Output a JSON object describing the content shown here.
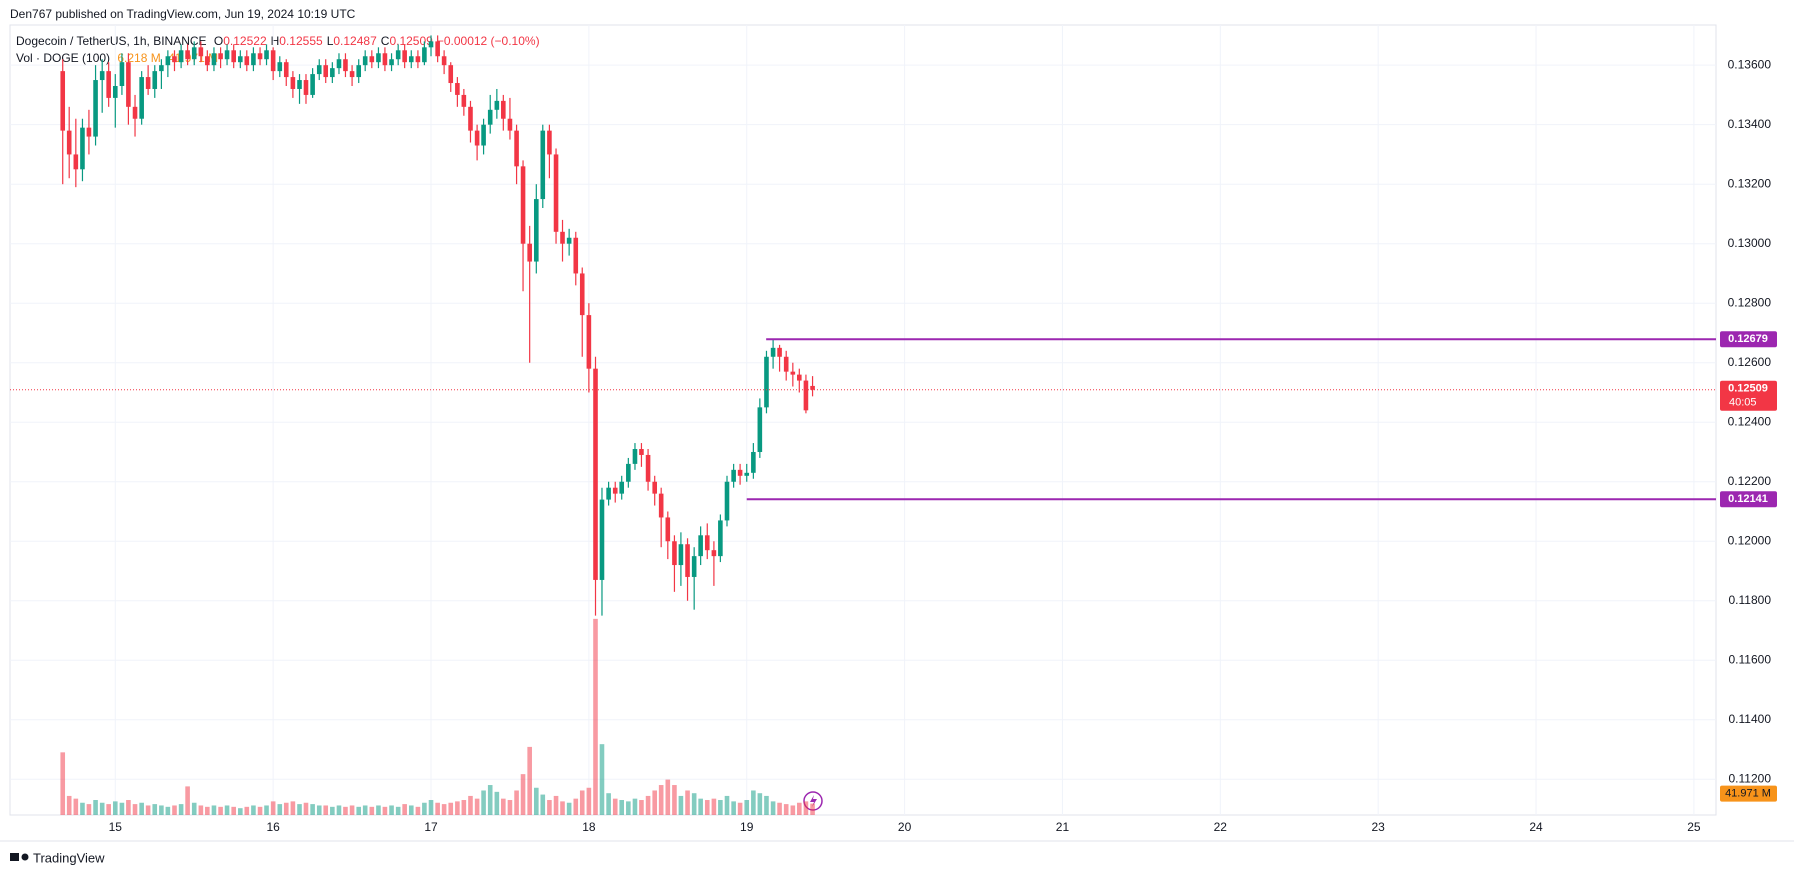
{
  "publisher": "Den767 published on TradingView.com, Jun 19, 2024 10:19 UTC",
  "footer": "TradingView",
  "chart_data": {
    "type": "candlestick",
    "title": "Dogecoin / TetherUS, 1h, BINANCE",
    "legend_ohlc": [
      {
        "label": "O",
        "value": 0.12522
      },
      {
        "label": "H",
        "value": 0.12555
      },
      {
        "label": "L",
        "value": 0.12487
      },
      {
        "label": "C",
        "value": 0.12509
      }
    ],
    "change": "−0.00012 (−0.10%)",
    "volume_title": "Vol · DOGE (100)",
    "volume_ma_label": "6.218 M",
    "volume_last_label": "41.971 M",
    "up_color": "#089981",
    "down_color": "#f23645",
    "level_color": "#9c27b0",
    "grid": true,
    "xlim": [
      14.333,
      25.14
    ],
    "xticks": [
      15,
      16,
      17,
      18,
      19,
      20,
      21,
      22,
      23,
      24,
      25
    ],
    "ylim": [
      0.1108,
      0.13735
    ],
    "yticks": [
      {
        "value": 0.112,
        "label": "0.11200"
      },
      {
        "value": 0.114,
        "label": "0.11400"
      },
      {
        "value": 0.116,
        "label": "0.11600"
      },
      {
        "value": 0.118,
        "label": "0.11800"
      },
      {
        "value": 0.12,
        "label": "0.12000"
      },
      {
        "value": 0.122,
        "label": "0.12200"
      },
      {
        "value": 0.124,
        "label": "0.12400"
      },
      {
        "value": 0.126,
        "label": "0.12600"
      },
      {
        "value": 0.128,
        "label": "0.12800"
      },
      {
        "value": 0.13,
        "label": "0.13000"
      },
      {
        "value": 0.132,
        "label": "0.13200"
      },
      {
        "value": 0.134,
        "label": "0.13400"
      },
      {
        "value": 0.136,
        "label": "0.13600"
      }
    ],
    "y2lim": [
      0,
      2900
    ],
    "last_price": 0.12509,
    "countdown": "40:05",
    "levels": [
      {
        "value": 0.12679,
        "x_start": 19.123
      },
      {
        "value": 0.12141,
        "x_start": 19.0
      }
    ],
    "x": [
      14.667,
      14.708,
      14.75,
      14.792,
      14.833,
      14.875,
      14.917,
      14.958,
      15,
      15.042,
      15.083,
      15.125,
      15.167,
      15.208,
      15.25,
      15.292,
      15.333,
      15.375,
      15.417,
      15.458,
      15.5,
      15.542,
      15.583,
      15.625,
      15.667,
      15.708,
      15.75,
      15.792,
      15.833,
      15.875,
      15.917,
      15.958,
      16,
      16.042,
      16.083,
      16.125,
      16.167,
      16.208,
      16.25,
      16.292,
      16.333,
      16.375,
      16.417,
      16.458,
      16.5,
      16.542,
      16.583,
      16.625,
      16.667,
      16.708,
      16.75,
      16.792,
      16.833,
      16.875,
      16.917,
      16.958,
      17,
      17.042,
      17.083,
      17.125,
      17.167,
      17.208,
      17.25,
      17.292,
      17.333,
      17.375,
      17.417,
      17.458,
      17.5,
      17.542,
      17.583,
      17.625,
      17.667,
      17.708,
      17.75,
      17.792,
      17.833,
      17.875,
      17.917,
      17.958,
      18,
      18.042,
      18.083,
      18.125,
      18.167,
      18.208,
      18.25,
      18.292,
      18.333,
      18.375,
      18.417,
      18.458,
      18.5,
      18.542,
      18.583,
      18.625,
      18.667,
      18.708,
      18.75,
      18.792,
      18.833,
      18.875,
      18.917,
      18.958,
      19,
      19.042,
      19.083,
      19.125,
      19.167,
      19.208,
      19.25,
      19.292,
      19.333,
      19.375,
      19.417
    ],
    "open": [
      0.1358,
      0.1338,
      0.133,
      0.1325,
      0.1339,
      0.1336,
      0.1355,
      0.1358,
      0.1349,
      0.1353,
      0.1361,
      0.1346,
      0.1342,
      0.1356,
      0.1352,
      0.1358,
      0.136,
      0.1363,
      0.1361,
      0.1365,
      0.1362,
      0.1366,
      0.1363,
      0.136,
      0.1364,
      0.1362,
      0.1365,
      0.1361,
      0.1363,
      0.136,
      0.1364,
      0.1362,
      0.1365,
      0.1358,
      0.1361,
      0.1356,
      0.1352,
      0.1355,
      0.135,
      0.1357,
      0.136,
      0.1356,
      0.1359,
      0.1362,
      0.1358,
      0.1356,
      0.136,
      0.1363,
      0.1361,
      0.1364,
      0.136,
      0.1362,
      0.1365,
      0.1361,
      0.1363,
      0.1361,
      0.1366,
      0.1368,
      0.1363,
      0.136,
      0.1354,
      0.135,
      0.1346,
      0.1338,
      0.1333,
      0.134,
      0.1345,
      0.1348,
      0.1342,
      0.1338,
      0.1326,
      0.13,
      0.1294,
      0.1315,
      0.1338,
      0.133,
      0.1304,
      0.13,
      0.1302,
      0.129,
      0.1276,
      0.1258,
      0.1187,
      0.1214,
      0.1218,
      0.1216,
      0.122,
      0.1226,
      0.1231,
      0.1229,
      0.122,
      0.1216,
      0.1208,
      0.12,
      0.1192,
      0.1199,
      0.1188,
      0.1195,
      0.1202,
      0.1197,
      0.1195,
      0.1207,
      0.122,
      0.1224,
      0.1222,
      0.1223,
      0.123,
      0.1245,
      0.1262,
      0.1265,
      0.1262,
      0.1257,
      0.1256,
      0.1254,
      0.12522
    ],
    "high": [
      0.1362,
      0.1346,
      0.1342,
      0.1342,
      0.1345,
      0.136,
      0.1362,
      0.1361,
      0.1357,
      0.1364,
      0.1364,
      0.135,
      0.1358,
      0.136,
      0.136,
      0.1362,
      0.1365,
      0.1365,
      0.1367,
      0.1367,
      0.1368,
      0.1368,
      0.1365,
      0.1366,
      0.1366,
      0.1367,
      0.1367,
      0.1365,
      0.1365,
      0.1366,
      0.1366,
      0.1367,
      0.1366,
      0.1363,
      0.1362,
      0.1358,
      0.1357,
      0.1357,
      0.1359,
      0.1362,
      0.1362,
      0.1361,
      0.1364,
      0.1364,
      0.136,
      0.1362,
      0.1365,
      0.1365,
      0.1366,
      0.1366,
      0.1364,
      0.1367,
      0.1367,
      0.1365,
      0.1365,
      0.1368,
      0.137,
      0.137,
      0.1365,
      0.1361,
      0.1356,
      0.1352,
      0.1348,
      0.134,
      0.1342,
      0.135,
      0.1352,
      0.135,
      0.1349,
      0.134,
      0.1328,
      0.1306,
      0.132,
      0.134,
      0.134,
      0.1332,
      0.1308,
      0.1305,
      0.1304,
      0.1292,
      0.128,
      0.1262,
      0.1218,
      0.122,
      0.122,
      0.1222,
      0.1228,
      0.1233,
      0.1233,
      0.1231,
      0.1222,
      0.1218,
      0.121,
      0.1202,
      0.1203,
      0.1201,
      0.1198,
      0.1205,
      0.1206,
      0.12,
      0.1209,
      0.1222,
      0.1226,
      0.1226,
      0.1226,
      0.1233,
      0.1248,
      0.1264,
      0.1268,
      0.1266,
      0.1264,
      0.126,
      0.1258,
      0.1256,
      0.12555
    ],
    "low": [
      0.132,
      0.1322,
      0.1319,
      0.1321,
      0.133,
      0.1333,
      0.1344,
      0.1346,
      0.1339,
      0.135,
      0.134,
      0.1336,
      0.134,
      0.135,
      0.1349,
      0.1352,
      0.1356,
      0.1358,
      0.1359,
      0.136,
      0.136,
      0.1361,
      0.1358,
      0.1358,
      0.1359,
      0.136,
      0.1359,
      0.1359,
      0.1358,
      0.1358,
      0.136,
      0.136,
      0.1355,
      0.1356,
      0.1353,
      0.1349,
      0.1347,
      0.1347,
      0.1349,
      0.1355,
      0.1354,
      0.1354,
      0.1357,
      0.1356,
      0.1353,
      0.1354,
      0.1358,
      0.1359,
      0.1359,
      0.1358,
      0.1358,
      0.136,
      0.1359,
      0.1359,
      0.1359,
      0.136,
      0.1363,
      0.1361,
      0.1357,
      0.1351,
      0.1346,
      0.1343,
      0.1334,
      0.1328,
      0.133,
      0.1337,
      0.1342,
      0.1338,
      0.1335,
      0.132,
      0.1284,
      0.126,
      0.129,
      0.1312,
      0.1322,
      0.13,
      0.1294,
      0.1296,
      0.1286,
      0.1262,
      0.125,
      0.1175,
      0.1175,
      0.1212,
      0.1213,
      0.1214,
      0.1218,
      0.1224,
      0.1225,
      0.1217,
      0.1212,
      0.1198,
      0.1194,
      0.1183,
      0.1185,
      0.118,
      0.1177,
      0.1192,
      0.1194,
      0.1185,
      0.1193,
      0.1205,
      0.1218,
      0.1219,
      0.122,
      0.1221,
      0.1228,
      0.1243,
      0.1258,
      0.1257,
      0.1254,
      0.1252,
      0.125,
      0.1243,
      0.12487
    ],
    "close": [
      0.1338,
      0.133,
      0.1325,
      0.1339,
      0.1336,
      0.1355,
      0.1358,
      0.1349,
      0.1353,
      0.1361,
      0.1346,
      0.1342,
      0.1356,
      0.1352,
      0.1358,
      0.136,
      0.1363,
      0.1361,
      0.1365,
      0.1362,
      0.1366,
      0.1363,
      0.136,
      0.1364,
      0.1362,
      0.1365,
      0.1361,
      0.1363,
      0.136,
      0.1364,
      0.1362,
      0.1365,
      0.1358,
      0.1361,
      0.1356,
      0.1352,
      0.1355,
      0.135,
      0.1357,
      0.136,
      0.1356,
      0.1359,
      0.1362,
      0.1358,
      0.1356,
      0.136,
      0.1363,
      0.1361,
      0.1364,
      0.136,
      0.1362,
      0.1365,
      0.1361,
      0.1363,
      0.1361,
      0.1366,
      0.1368,
      0.1363,
      0.136,
      0.1354,
      0.135,
      0.1346,
      0.1338,
      0.1333,
      0.134,
      0.1345,
      0.1348,
      0.1342,
      0.1338,
      0.1326,
      0.13,
      0.1294,
      0.1315,
      0.1338,
      0.133,
      0.1304,
      0.13,
      0.1302,
      0.129,
      0.1276,
      0.1258,
      0.1187,
      0.1214,
      0.1218,
      0.1216,
      0.122,
      0.1226,
      0.1231,
      0.1229,
      0.122,
      0.1216,
      0.1208,
      0.12,
      0.1192,
      0.1199,
      0.1188,
      0.1195,
      0.1202,
      0.1197,
      0.1195,
      0.1207,
      0.122,
      0.1224,
      0.1222,
      0.1223,
      0.123,
      0.1245,
      0.1262,
      0.1265,
      0.1262,
      0.1257,
      0.1256,
      0.1254,
      0.1244,
      0.12509
    ],
    "volume": [
      230,
      70,
      60,
      45,
      40,
      55,
      45,
      40,
      50,
      45,
      55,
      40,
      45,
      35,
      40,
      35,
      30,
      35,
      40,
      105,
      45,
      35,
      30,
      35,
      30,
      35,
      30,
      25,
      30,
      35,
      30,
      35,
      50,
      40,
      45,
      50,
      40,
      45,
      40,
      35,
      35,
      30,
      35,
      30,
      35,
      30,
      35,
      30,
      35,
      30,
      35,
      30,
      40,
      35,
      30,
      45,
      55,
      45,
      40,
      45,
      50,
      55,
      70,
      60,
      90,
      110,
      85,
      60,
      55,
      90,
      150,
      250,
      100,
      75,
      55,
      70,
      50,
      45,
      60,
      90,
      100,
      720,
      260,
      80,
      60,
      55,
      50,
      60,
      55,
      70,
      90,
      110,
      130,
      110,
      70,
      90,
      80,
      60,
      55,
      60,
      55,
      70,
      50,
      45,
      55,
      90,
      80,
      70,
      50,
      45,
      40,
      35,
      45,
      50,
      41.971
    ]
  }
}
